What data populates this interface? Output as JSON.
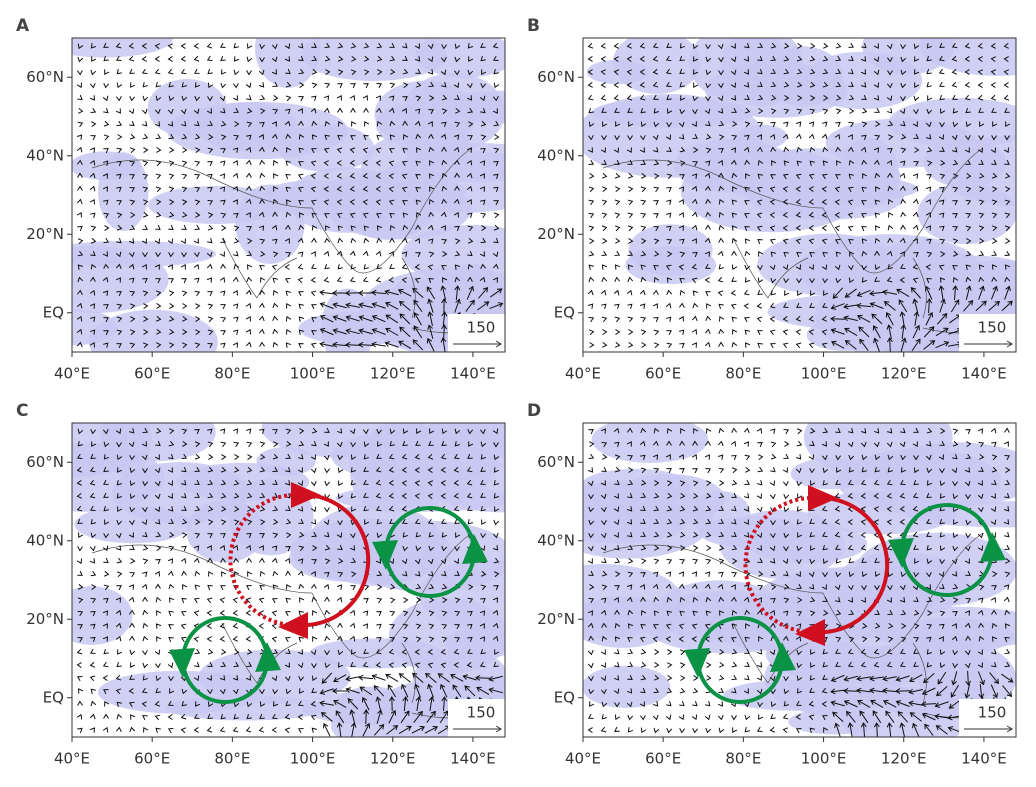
{
  "panels": [
    {
      "label": "A"
    },
    {
      "label": "B"
    },
    {
      "label": "C"
    },
    {
      "label": "D"
    }
  ],
  "xlim": [
    40,
    148
  ],
  "ylim": [
    -10,
    70
  ],
  "xticks": [
    {
      "value": 40,
      "label": "40°E"
    },
    {
      "value": 60,
      "label": "60°E"
    },
    {
      "value": 80,
      "label": "80°E"
    },
    {
      "value": 100,
      "label": "100°E"
    },
    {
      "value": 120,
      "label": "120°E"
    },
    {
      "value": 140,
      "label": "140°E"
    }
  ],
  "yticks": [
    {
      "value": 0,
      "label": "EQ"
    },
    {
      "value": 20,
      "label": "20°N"
    },
    {
      "value": 40,
      "label": "40°N"
    },
    {
      "value": 60,
      "label": "60°N"
    }
  ],
  "reference_vector": 150
}
